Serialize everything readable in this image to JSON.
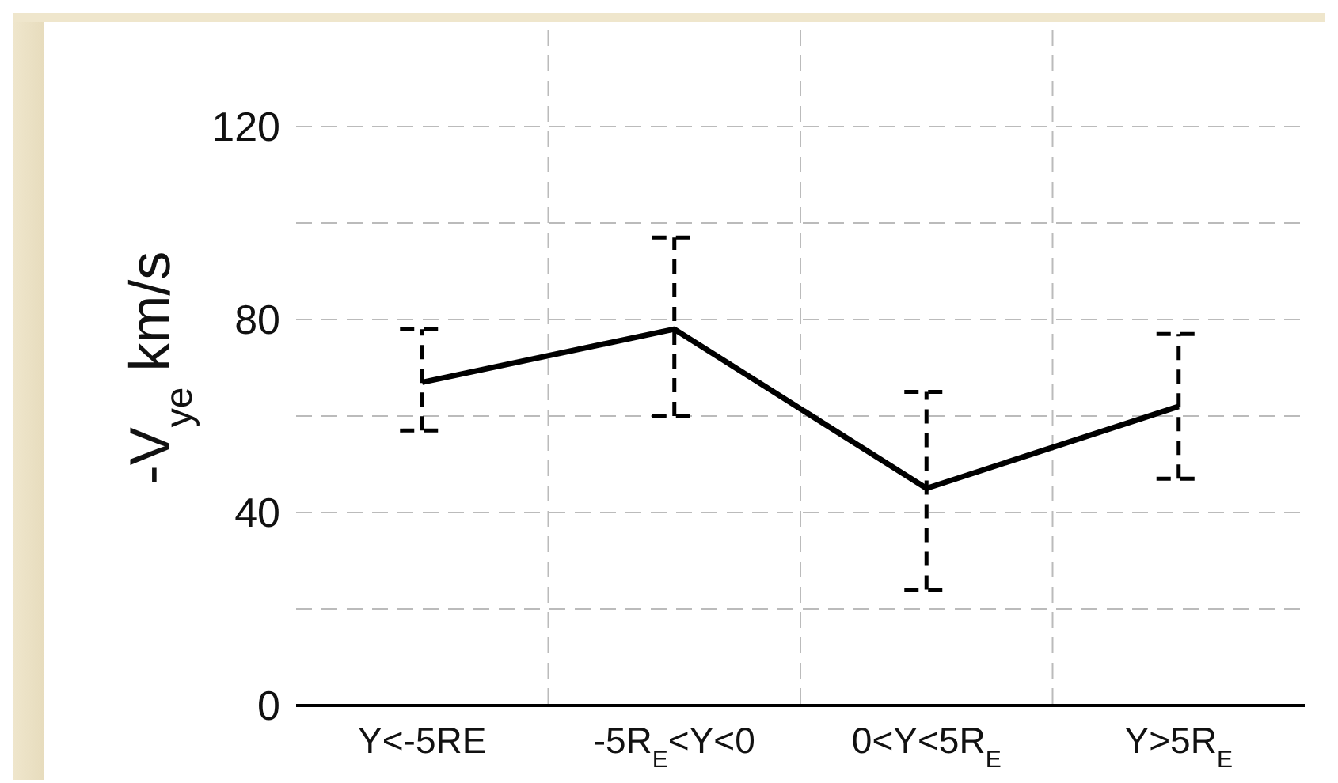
{
  "chart_data": {
    "type": "line",
    "ylabel": "-V$_{ye}$ km/s",
    "categories": [
      "Y<-5RE",
      "-5R$_{E}$<Y<0",
      "0<Y<5R$_{E}$",
      "Y>5R$_{E}$"
    ],
    "series": [
      {
        "color": "#000000",
        "values": [
          67,
          78,
          45,
          62
        ],
        "errors": [
          [
            57,
            78
          ],
          [
            60,
            97
          ],
          [
            24,
            65
          ],
          [
            47,
            77
          ]
        ]
      }
    ],
    "ylim": [
      0,
      140
    ],
    "yticks": [
      0,
      {
        "value": 20,
        "label": null
      },
      40,
      {
        "value": 60,
        "label": null
      },
      80,
      {
        "value": 100,
        "label": null
      },
      120
    ],
    "grid": true,
    "marker": "none",
    "line_style": "solid"
  }
}
